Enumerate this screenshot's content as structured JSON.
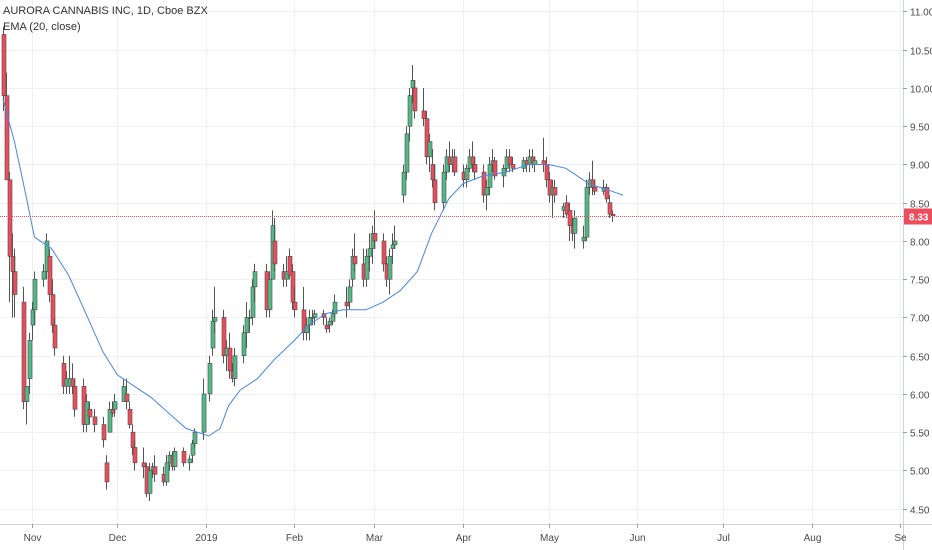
{
  "chart_data": {
    "type": "candlestick",
    "title": "AURORA CANNABIS INC, 1D, Cboe BZX",
    "indicator": "EMA (20, close)",
    "ylim": [
      4.3,
      11.15
    ],
    "xlim": [
      "2018-10-22",
      "2019-09-02"
    ],
    "y_ticks": [
      "4.50",
      "5.00",
      "5.50",
      "6.00",
      "6.50",
      "7.00",
      "7.50",
      "8.00",
      "8.50",
      "9.00",
      "9.50",
      "10.00",
      "10.50",
      "11.00"
    ],
    "x_ticks": [
      {
        "date": "2018-11-01",
        "label": "Nov"
      },
      {
        "date": "2018-12-01",
        "label": "Dec"
      },
      {
        "date": "2019-01-01",
        "label": "2019"
      },
      {
        "date": "2019-02-01",
        "label": "Feb"
      },
      {
        "date": "2019-03-01",
        "label": "Mar"
      },
      {
        "date": "2019-04-01",
        "label": "Apr"
      },
      {
        "date": "2019-05-01",
        "label": "May"
      },
      {
        "date": "2019-06-01",
        "label": "Jun"
      },
      {
        "date": "2019-07-01",
        "label": "Jul"
      },
      {
        "date": "2019-08-01",
        "label": "Aug"
      },
      {
        "date": "2019-09-01",
        "label": "Se"
      }
    ],
    "last_price": "8.33",
    "grid": true,
    "colors": {
      "up": "#53b987",
      "down": "#eb4d5c",
      "ema": "#4985e7",
      "price_line": "#eb4d5c"
    },
    "ema": [
      [
        "2018-10-22",
        9.85
      ],
      [
        "2018-10-26",
        9.3
      ],
      [
        "2018-10-30",
        8.6
      ],
      [
        "2018-11-02",
        8.05
      ],
      [
        "2018-11-08",
        7.9
      ],
      [
        "2018-11-14",
        7.55
      ],
      [
        "2018-11-20",
        7.05
      ],
      [
        "2018-11-26",
        6.55
      ],
      [
        "2018-12-01",
        6.25
      ],
      [
        "2018-12-07",
        6.1
      ],
      [
        "2018-12-13",
        5.95
      ],
      [
        "2018-12-19",
        5.75
      ],
      [
        "2018-12-25",
        5.55
      ],
      [
        "2019-01-02",
        5.45
      ],
      [
        "2019-01-06",
        5.55
      ],
      [
        "2019-01-09",
        5.85
      ],
      [
        "2019-01-13",
        6.05
      ],
      [
        "2019-01-19",
        6.2
      ],
      [
        "2019-01-25",
        6.45
      ],
      [
        "2019-02-01",
        6.7
      ],
      [
        "2019-02-06",
        6.9
      ],
      [
        "2019-02-12",
        7.05
      ],
      [
        "2019-02-18",
        7.1
      ],
      [
        "2019-02-26",
        7.1
      ],
      [
        "2019-03-04",
        7.2
      ],
      [
        "2019-03-10",
        7.35
      ],
      [
        "2019-03-16",
        7.6
      ],
      [
        "2019-03-21",
        8.1
      ],
      [
        "2019-03-27",
        8.55
      ],
      [
        "2019-04-01",
        8.75
      ],
      [
        "2019-04-08",
        8.85
      ],
      [
        "2019-04-16",
        8.9
      ],
      [
        "2019-04-24",
        9.0
      ],
      [
        "2019-05-01",
        9.0
      ],
      [
        "2019-05-07",
        8.95
      ],
      [
        "2019-05-11",
        8.85
      ],
      [
        "2019-05-15",
        8.75
      ],
      [
        "2019-05-19",
        8.7
      ],
      [
        "2019-05-23",
        8.65
      ],
      [
        "2019-05-27",
        8.6
      ]
    ],
    "candles": [
      [
        "2018-10-22",
        10.7,
        10.8,
        9.7,
        9.9
      ],
      [
        "2018-10-23",
        9.9,
        10.2,
        8.8,
        8.8
      ],
      [
        "2018-10-24",
        8.8,
        8.9,
        7.2,
        7.8
      ],
      [
        "2018-10-25",
        7.8,
        8.1,
        7.0,
        7.6
      ],
      [
        "2018-10-26",
        7.6,
        7.9,
        7.0,
        7.3
      ],
      [
        "2018-10-29",
        7.2,
        7.4,
        5.8,
        5.9
      ],
      [
        "2018-10-30",
        5.9,
        6.1,
        5.6,
        6.1
      ],
      [
        "2018-10-31",
        6.2,
        6.8,
        6.0,
        6.7
      ],
      [
        "2018-11-01",
        6.9,
        7.2,
        6.7,
        7.1
      ],
      [
        "2018-11-02",
        7.1,
        7.6,
        6.9,
        7.5
      ],
      [
        "2018-11-05",
        7.5,
        7.7,
        7.4,
        7.6
      ],
      [
        "2018-11-06",
        7.6,
        8.1,
        7.5,
        8.0
      ],
      [
        "2018-11-07",
        7.8,
        7.9,
        7.2,
        7.3
      ],
      [
        "2018-11-08",
        7.3,
        7.5,
        6.8,
        6.9
      ],
      [
        "2018-11-09",
        6.9,
        7.0,
        6.5,
        6.6
      ],
      [
        "2018-11-12",
        6.4,
        6.5,
        6.0,
        6.1
      ],
      [
        "2018-11-13",
        6.1,
        6.3,
        6.0,
        6.2
      ],
      [
        "2018-11-14",
        6.1,
        6.5,
        6.0,
        6.2
      ],
      [
        "2018-11-15",
        6.2,
        6.4,
        6.0,
        6.1
      ],
      [
        "2018-11-16",
        6.1,
        6.2,
        5.7,
        5.8
      ],
      [
        "2018-11-19",
        6.1,
        6.2,
        5.5,
        5.6
      ],
      [
        "2018-11-20",
        5.6,
        6.0,
        5.5,
        5.9
      ],
      [
        "2018-11-21",
        5.8,
        5.9,
        5.6,
        5.7
      ],
      [
        "2018-11-23",
        5.7,
        5.8,
        5.5,
        5.6
      ],
      [
        "2018-11-26",
        5.6,
        5.7,
        5.3,
        5.4
      ],
      [
        "2018-11-27",
        5.1,
        5.2,
        4.75,
        4.85
      ],
      [
        "2018-11-28",
        5.5,
        5.9,
        5.5,
        5.8
      ],
      [
        "2018-11-29",
        5.8,
        5.9,
        5.7,
        5.75
      ],
      [
        "2018-11-30",
        5.8,
        6.0,
        5.7,
        5.9
      ],
      [
        "2018-12-03",
        5.9,
        6.2,
        5.9,
        6.1
      ],
      [
        "2018-12-04",
        6.0,
        6.2,
        5.8,
        5.9
      ],
      [
        "2018-12-05",
        5.8,
        5.9,
        5.55,
        5.6
      ],
      [
        "2018-12-06",
        5.5,
        5.6,
        5.2,
        5.3
      ],
      [
        "2018-12-07",
        5.3,
        5.4,
        5.0,
        5.1
      ],
      [
        "2018-12-10",
        5.1,
        5.3,
        4.9,
        5.05
      ],
      [
        "2018-12-11",
        5.05,
        5.1,
        4.65,
        4.7
      ],
      [
        "2018-12-12",
        4.7,
        5.1,
        4.6,
        5.0
      ],
      [
        "2018-12-13",
        5.0,
        5.1,
        4.9,
        5.05
      ],
      [
        "2018-12-14",
        5.05,
        5.2,
        4.85,
        4.95
      ],
      [
        "2018-12-17",
        4.95,
        5.05,
        4.8,
        4.85
      ],
      [
        "2018-12-18",
        4.85,
        5.2,
        4.8,
        5.1
      ],
      [
        "2018-12-19",
        5.1,
        5.25,
        5.0,
        5.2
      ],
      [
        "2018-12-20",
        5.2,
        5.25,
        5.0,
        5.05
      ],
      [
        "2018-12-21",
        5.05,
        5.3,
        5.0,
        5.25
      ],
      [
        "2018-12-24",
        5.25,
        5.3,
        5.05,
        5.1
      ],
      [
        "2018-12-26",
        5.1,
        5.2,
        5.0,
        5.15
      ],
      [
        "2018-12-27",
        5.2,
        5.4,
        5.1,
        5.35
      ],
      [
        "2018-12-28",
        5.35,
        5.55,
        5.3,
        5.5
      ],
      [
        "2018-12-31",
        5.5,
        6.2,
        5.4,
        6.0
      ],
      [
        "2019-01-02",
        6.0,
        6.5,
        5.9,
        6.4
      ],
      [
        "2019-01-03",
        6.6,
        7.1,
        6.5,
        6.95
      ],
      [
        "2019-01-04",
        6.95,
        7.4,
        6.8,
        7.0
      ],
      [
        "2019-01-07",
        7.0,
        7.1,
        6.4,
        6.5
      ],
      [
        "2019-01-08",
        6.5,
        6.7,
        6.3,
        6.6
      ],
      [
        "2019-01-09",
        6.6,
        6.8,
        6.2,
        6.3
      ],
      [
        "2019-01-10",
        6.3,
        6.4,
        6.15,
        6.2
      ],
      [
        "2019-01-11",
        6.2,
        6.6,
        6.1,
        6.5
      ],
      [
        "2019-01-14",
        6.5,
        6.9,
        6.4,
        6.8
      ],
      [
        "2019-01-15",
        6.8,
        7.2,
        6.6,
        7.0
      ],
      [
        "2019-01-16",
        7.0,
        7.1,
        6.8,
        7.0
      ],
      [
        "2019-01-17",
        7.0,
        7.5,
        6.9,
        7.4
      ],
      [
        "2019-01-18",
        7.4,
        7.7,
        7.2,
        7.6
      ],
      [
        "2019-01-22",
        7.6,
        7.7,
        7.0,
        7.1
      ],
      [
        "2019-01-23",
        7.1,
        7.6,
        7.0,
        7.5
      ],
      [
        "2019-01-24",
        7.5,
        8.4,
        7.5,
        8.2
      ],
      [
        "2019-01-25",
        8.0,
        8.3,
        7.6,
        7.7
      ],
      [
        "2019-01-28",
        7.6,
        7.7,
        7.4,
        7.5
      ],
      [
        "2019-01-29",
        7.5,
        7.8,
        7.4,
        7.6
      ],
      [
        "2019-01-30",
        7.8,
        7.9,
        7.5,
        7.55
      ],
      [
        "2019-01-31",
        7.6,
        7.7,
        7.1,
        7.2
      ],
      [
        "2019-02-01",
        7.2,
        7.4,
        7.0,
        7.1
      ],
      [
        "2019-02-04",
        7.1,
        7.4,
        6.7,
        6.8
      ],
      [
        "2019-02-05",
        6.8,
        7.0,
        6.7,
        6.9
      ],
      [
        "2019-02-06",
        6.9,
        7.1,
        6.7,
        7.0
      ],
      [
        "2019-02-07",
        7.0,
        7.1,
        6.9,
        7.0
      ],
      [
        "2019-02-08",
        7.0,
        7.1,
        6.9,
        7.05
      ],
      [
        "2019-02-11",
        7.05,
        7.1,
        6.9,
        7.0
      ],
      [
        "2019-02-12",
        6.9,
        7.0,
        6.8,
        6.85
      ],
      [
        "2019-02-13",
        6.9,
        7.0,
        6.8,
        6.95
      ],
      [
        "2019-02-14",
        6.95,
        7.1,
        6.9,
        7.05
      ],
      [
        "2019-02-15",
        7.05,
        7.3,
        7.0,
        7.2
      ],
      [
        "2019-02-19",
        7.2,
        7.4,
        7.0,
        7.15
      ],
      [
        "2019-02-20",
        7.2,
        7.5,
        7.1,
        7.4
      ],
      [
        "2019-02-21",
        7.5,
        7.9,
        7.4,
        7.8
      ],
      [
        "2019-02-22",
        7.8,
        8.1,
        7.6,
        7.7
      ],
      [
        "2019-02-25",
        7.7,
        7.9,
        7.4,
        7.5
      ],
      [
        "2019-02-26",
        7.5,
        7.9,
        7.4,
        7.8
      ],
      [
        "2019-02-27",
        7.8,
        8.1,
        7.6,
        7.9
      ],
      [
        "2019-02-28",
        7.9,
        8.2,
        7.7,
        8.1
      ],
      [
        "2019-03-01",
        8.1,
        8.4,
        7.9,
        8.0
      ],
      [
        "2019-03-04",
        8.0,
        8.1,
        7.6,
        7.7
      ],
      [
        "2019-03-05",
        7.7,
        7.8,
        7.4,
        7.5
      ],
      [
        "2019-03-06",
        7.5,
        7.9,
        7.3,
        7.8
      ],
      [
        "2019-03-07",
        7.9,
        8.1,
        7.7,
        7.95
      ],
      [
        "2019-03-08",
        7.95,
        8.2,
        7.9,
        8.0
      ],
      [
        "2019-03-11",
        8.6,
        9.0,
        8.5,
        8.9
      ],
      [
        "2019-03-12",
        8.9,
        9.5,
        8.8,
        9.4
      ],
      [
        "2019-03-13",
        9.5,
        10.0,
        9.3,
        9.9
      ],
      [
        "2019-03-14",
        10.0,
        10.3,
        9.8,
        10.1
      ],
      [
        "2019-03-15",
        10.0,
        10.1,
        9.6,
        9.7
      ],
      [
        "2019-03-18",
        9.7,
        10.0,
        9.5,
        9.6
      ],
      [
        "2019-03-19",
        9.6,
        9.7,
        9.0,
        9.1
      ],
      [
        "2019-03-20",
        9.1,
        9.4,
        8.9,
        9.3
      ],
      [
        "2019-03-21",
        9.0,
        9.2,
        8.7,
        8.8
      ],
      [
        "2019-03-22",
        8.8,
        9.0,
        8.4,
        8.5
      ],
      [
        "2019-03-25",
        8.5,
        9.0,
        8.4,
        8.9
      ],
      [
        "2019-03-26",
        8.9,
        9.2,
        8.8,
        9.1
      ],
      [
        "2019-03-27",
        9.1,
        9.3,
        8.9,
        9.0
      ],
      [
        "2019-03-28",
        9.0,
        9.2,
        8.9,
        9.1
      ],
      [
        "2019-03-29",
        9.1,
        9.2,
        8.85,
        8.9
      ],
      [
        "2019-04-01",
        8.9,
        9.0,
        8.7,
        8.8
      ],
      [
        "2019-04-02",
        8.8,
        9.0,
        8.7,
        8.95
      ],
      [
        "2019-04-03",
        8.95,
        9.2,
        8.9,
        9.1
      ],
      [
        "2019-04-04",
        9.1,
        9.3,
        8.9,
        9.0
      ],
      [
        "2019-04-05",
        9.0,
        9.1,
        8.8,
        8.9
      ],
      [
        "2019-04-08",
        8.9,
        9.0,
        8.5,
        8.6
      ],
      [
        "2019-04-09",
        8.6,
        8.8,
        8.4,
        8.7
      ],
      [
        "2019-04-10",
        8.7,
        9.1,
        8.6,
        9.0
      ],
      [
        "2019-04-11",
        9.0,
        9.2,
        8.9,
        9.05
      ],
      [
        "2019-04-12",
        9.05,
        9.1,
        8.8,
        8.85
      ],
      [
        "2019-04-15",
        8.85,
        9.0,
        8.7,
        8.95
      ],
      [
        "2019-04-16",
        8.95,
        9.2,
        8.9,
        9.1
      ],
      [
        "2019-04-17",
        9.1,
        9.2,
        8.9,
        9.0
      ],
      [
        "2019-04-18",
        9.0,
        9.1,
        8.9,
        8.95
      ],
      [
        "2019-04-22",
        8.95,
        9.1,
        8.9,
        9.05
      ],
      [
        "2019-04-23",
        9.05,
        9.1,
        8.9,
        9.0
      ],
      [
        "2019-04-24",
        9.0,
        9.2,
        8.9,
        9.1
      ],
      [
        "2019-04-25",
        9.1,
        9.2,
        8.95,
        9.0
      ],
      [
        "2019-04-26",
        9.0,
        9.1,
        8.9,
        9.05
      ],
      [
        "2019-04-29",
        9.05,
        9.35,
        8.9,
        9.0
      ],
      [
        "2019-04-30",
        9.0,
        9.1,
        8.7,
        8.8
      ],
      [
        "2019-05-01",
        8.8,
        8.9,
        8.5,
        8.6
      ],
      [
        "2019-05-02",
        8.6,
        8.8,
        8.3,
        8.7
      ],
      [
        "2019-05-03",
        8.7,
        8.8,
        8.5,
        8.6
      ],
      [
        "2019-05-06",
        8.4,
        8.5,
        8.3,
        8.45
      ],
      [
        "2019-05-07",
        8.5,
        8.6,
        8.3,
        8.35
      ],
      [
        "2019-05-08",
        8.4,
        8.5,
        8.0,
        8.2
      ],
      [
        "2019-05-09",
        8.2,
        8.3,
        8.0,
        8.1
      ],
      [
        "2019-05-10",
        8.1,
        8.4,
        7.9,
        8.3
      ],
      [
        "2019-05-13",
        8.0,
        8.2,
        7.9,
        8.05
      ],
      [
        "2019-05-14",
        8.05,
        8.8,
        8.0,
        8.7
      ],
      [
        "2019-05-15",
        8.7,
        8.9,
        8.6,
        8.8
      ],
      [
        "2019-05-16",
        8.8,
        9.05,
        8.6,
        8.7
      ],
      [
        "2019-05-17",
        8.7,
        8.8,
        8.6,
        8.65
      ],
      [
        "2019-05-20",
        8.65,
        8.8,
        8.6,
        8.7
      ],
      [
        "2019-05-21",
        8.7,
        8.75,
        8.5,
        8.55
      ],
      [
        "2019-05-22",
        8.5,
        8.6,
        8.3,
        8.35
      ],
      [
        "2019-05-23",
        8.35,
        8.4,
        8.25,
        8.33
      ]
    ]
  }
}
